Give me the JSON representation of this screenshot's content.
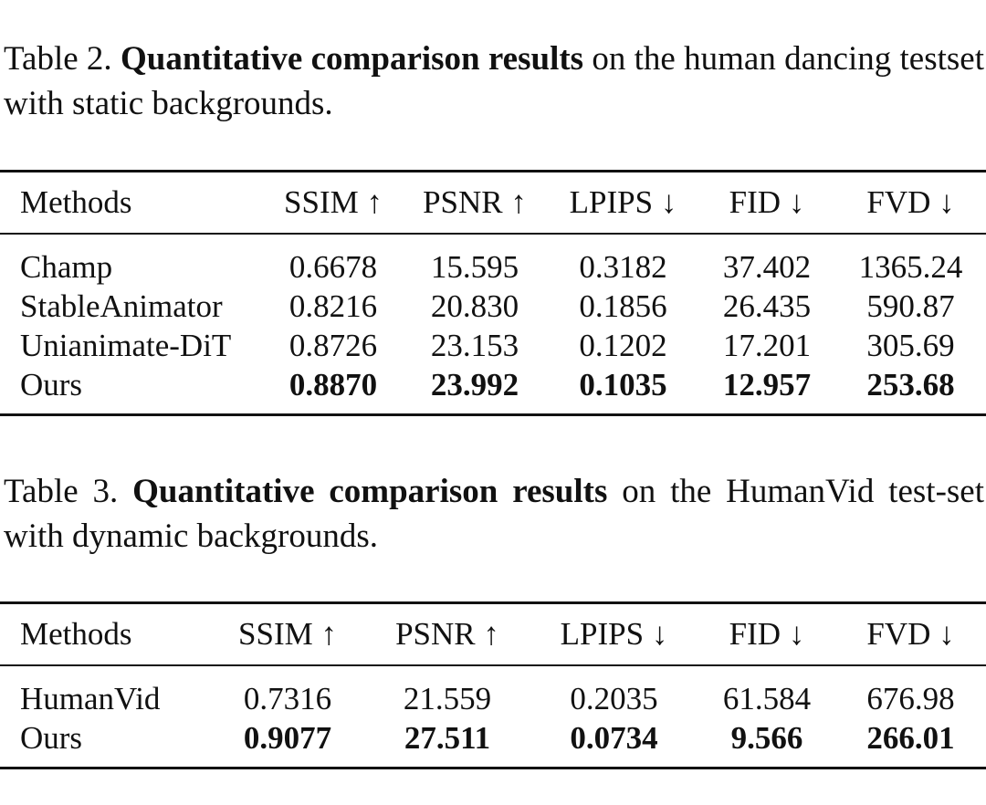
{
  "table2": {
    "caption_prefix": "Table 2.",
    "caption_bold": "Quantitative comparison results",
    "caption_rest": "on the human dancing testset with static backgrounds.",
    "headers": [
      "Methods",
      "SSIM ↑",
      "PSNR ↑",
      "LPIPS ↓",
      "FID ↓",
      "FVD ↓"
    ],
    "rows": [
      {
        "method": "Champ",
        "values": [
          "0.6678",
          "15.595",
          "0.3182",
          "37.402",
          "1365.24"
        ],
        "bold": false
      },
      {
        "method": "StableAnimator",
        "values": [
          "0.8216",
          "20.830",
          "0.1856",
          "26.435",
          "590.87"
        ],
        "bold": false
      },
      {
        "method": "Unianimate-DiT",
        "values": [
          "0.8726",
          "23.153",
          "0.1202",
          "17.201",
          "305.69"
        ],
        "bold": false
      },
      {
        "method": "Ours",
        "values": [
          "0.8870",
          "23.992",
          "0.1035",
          "12.957",
          "253.68"
        ],
        "bold": true
      }
    ]
  },
  "table3": {
    "caption_prefix": "Table 3.",
    "caption_bold": "Quantitative comparison results",
    "caption_rest": "on the HumanVid test-set with dynamic backgrounds.",
    "headers": [
      "Methods",
      "SSIM ↑",
      "PSNR ↑",
      "LPIPS ↓",
      "FID ↓",
      "FVD ↓"
    ],
    "rows": [
      {
        "method": "HumanVid",
        "values": [
          "0.7316",
          "21.559",
          "0.2035",
          "61.584",
          "676.98"
        ],
        "bold": false
      },
      {
        "method": "Ours",
        "values": [
          "0.9077",
          "27.511",
          "0.0734",
          "9.566",
          "266.01"
        ],
        "bold": true
      }
    ]
  }
}
